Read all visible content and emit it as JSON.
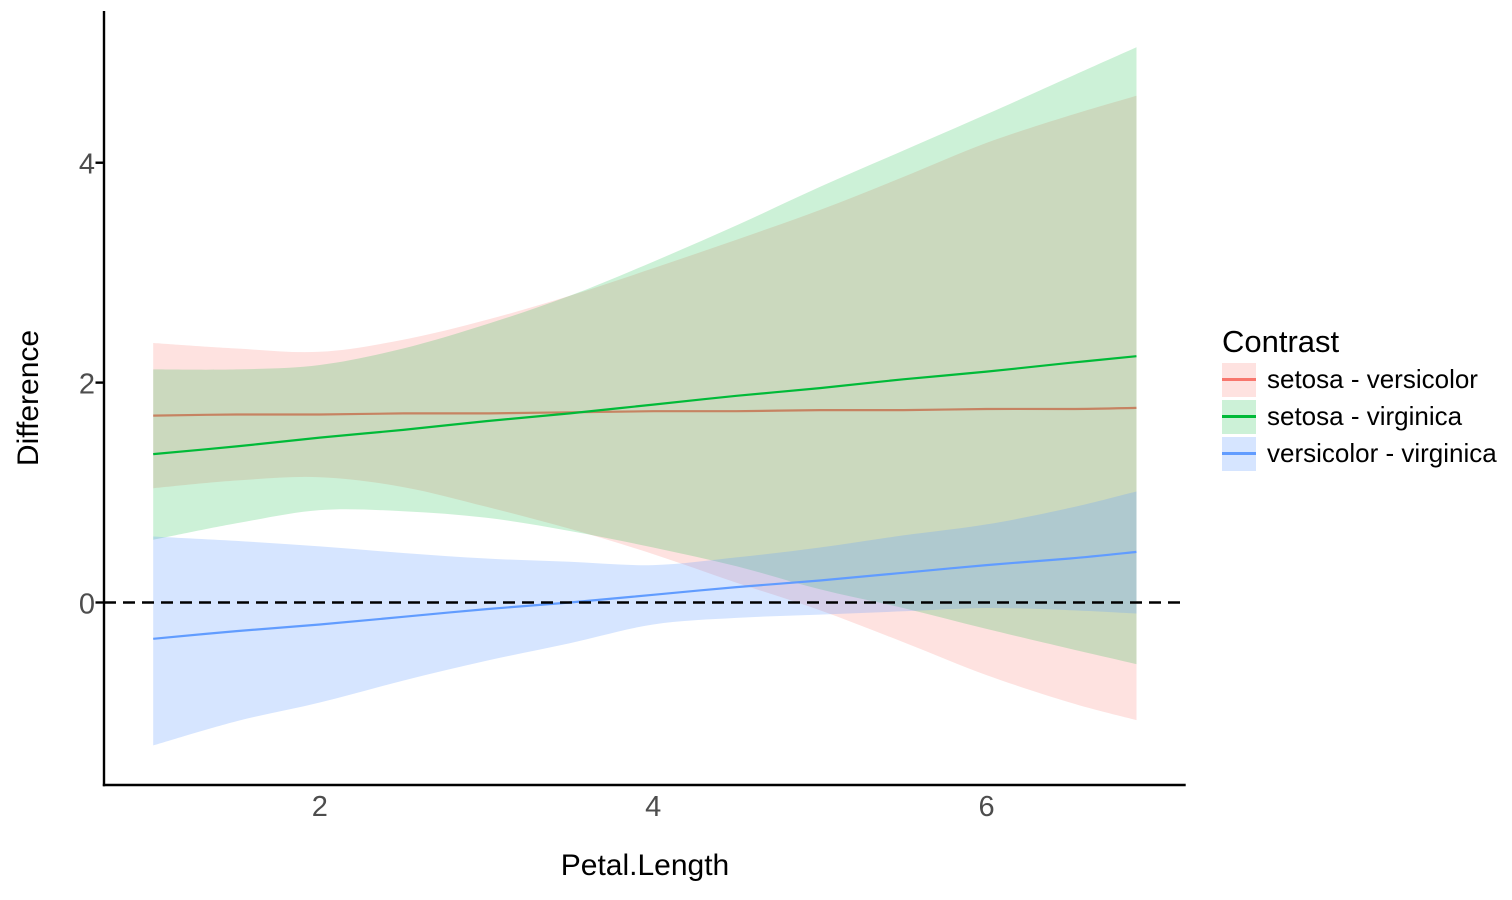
{
  "chart_data": {
    "type": "line",
    "xlabel": "Petal.Length",
    "ylabel": "Difference",
    "legend": {
      "title": "Contrast",
      "position": "right"
    },
    "x_ticks": [
      2,
      4,
      6
    ],
    "y_ticks": [
      0,
      2,
      4
    ],
    "xlim": [
      0.705,
      7.195
    ],
    "ylim": [
      -1.66,
      5.38
    ],
    "grid": false,
    "hline": {
      "y": 0,
      "linetype": "dashed",
      "color": "#000000"
    },
    "axis_color": "#000000",
    "tick_label_color": "#4D4D4D",
    "x": [
      1,
      1.5,
      2,
      2.5,
      3,
      3.5,
      4,
      4.5,
      5,
      5.5,
      6,
      6.5,
      6.9
    ],
    "series": [
      {
        "name": "setosa - versicolor",
        "color": "#F8766D",
        "fill_alpha": 0.21,
        "line": [
          1.7,
          1.71,
          1.71,
          1.72,
          1.72,
          1.73,
          1.74,
          1.74,
          1.75,
          1.75,
          1.76,
          1.76,
          1.77
        ],
        "upper": [
          2.36,
          2.31,
          2.28,
          2.39,
          2.57,
          2.79,
          3.04,
          3.3,
          3.57,
          3.87,
          4.18,
          4.43,
          4.61
        ],
        "lower": [
          1.04,
          1.11,
          1.14,
          1.05,
          0.87,
          0.67,
          0.44,
          0.18,
          -0.07,
          -0.36,
          -0.66,
          -0.91,
          -1.07
        ]
      },
      {
        "name": "setosa - virginica",
        "color": "#00BA38",
        "fill_alpha": 0.2,
        "line": [
          1.35,
          1.42,
          1.5,
          1.57,
          1.65,
          1.72,
          1.8,
          1.88,
          1.95,
          2.03,
          2.1,
          2.18,
          2.24
        ],
        "upper": [
          2.12,
          2.12,
          2.16,
          2.31,
          2.53,
          2.79,
          3.1,
          3.43,
          3.78,
          4.11,
          4.44,
          4.78,
          5.05
        ],
        "lower": [
          0.57,
          0.72,
          0.84,
          0.83,
          0.77,
          0.65,
          0.5,
          0.33,
          0.12,
          -0.05,
          -0.24,
          -0.42,
          -0.56
        ]
      },
      {
        "name": "versicolor - virginica",
        "color": "#619CFF",
        "fill_alpha": 0.26,
        "line": [
          -0.33,
          -0.26,
          -0.2,
          -0.13,
          -0.06,
          0.0,
          0.07,
          0.14,
          0.2,
          0.27,
          0.34,
          0.4,
          0.46
        ],
        "upper": [
          0.6,
          0.56,
          0.51,
          0.45,
          0.4,
          0.37,
          0.34,
          0.41,
          0.5,
          0.61,
          0.71,
          0.86,
          1.01
        ],
        "lower": [
          -1.3,
          -1.08,
          -0.91,
          -0.71,
          -0.53,
          -0.37,
          -0.2,
          -0.14,
          -0.11,
          -0.08,
          -0.05,
          -0.07,
          -0.1
        ]
      }
    ]
  }
}
